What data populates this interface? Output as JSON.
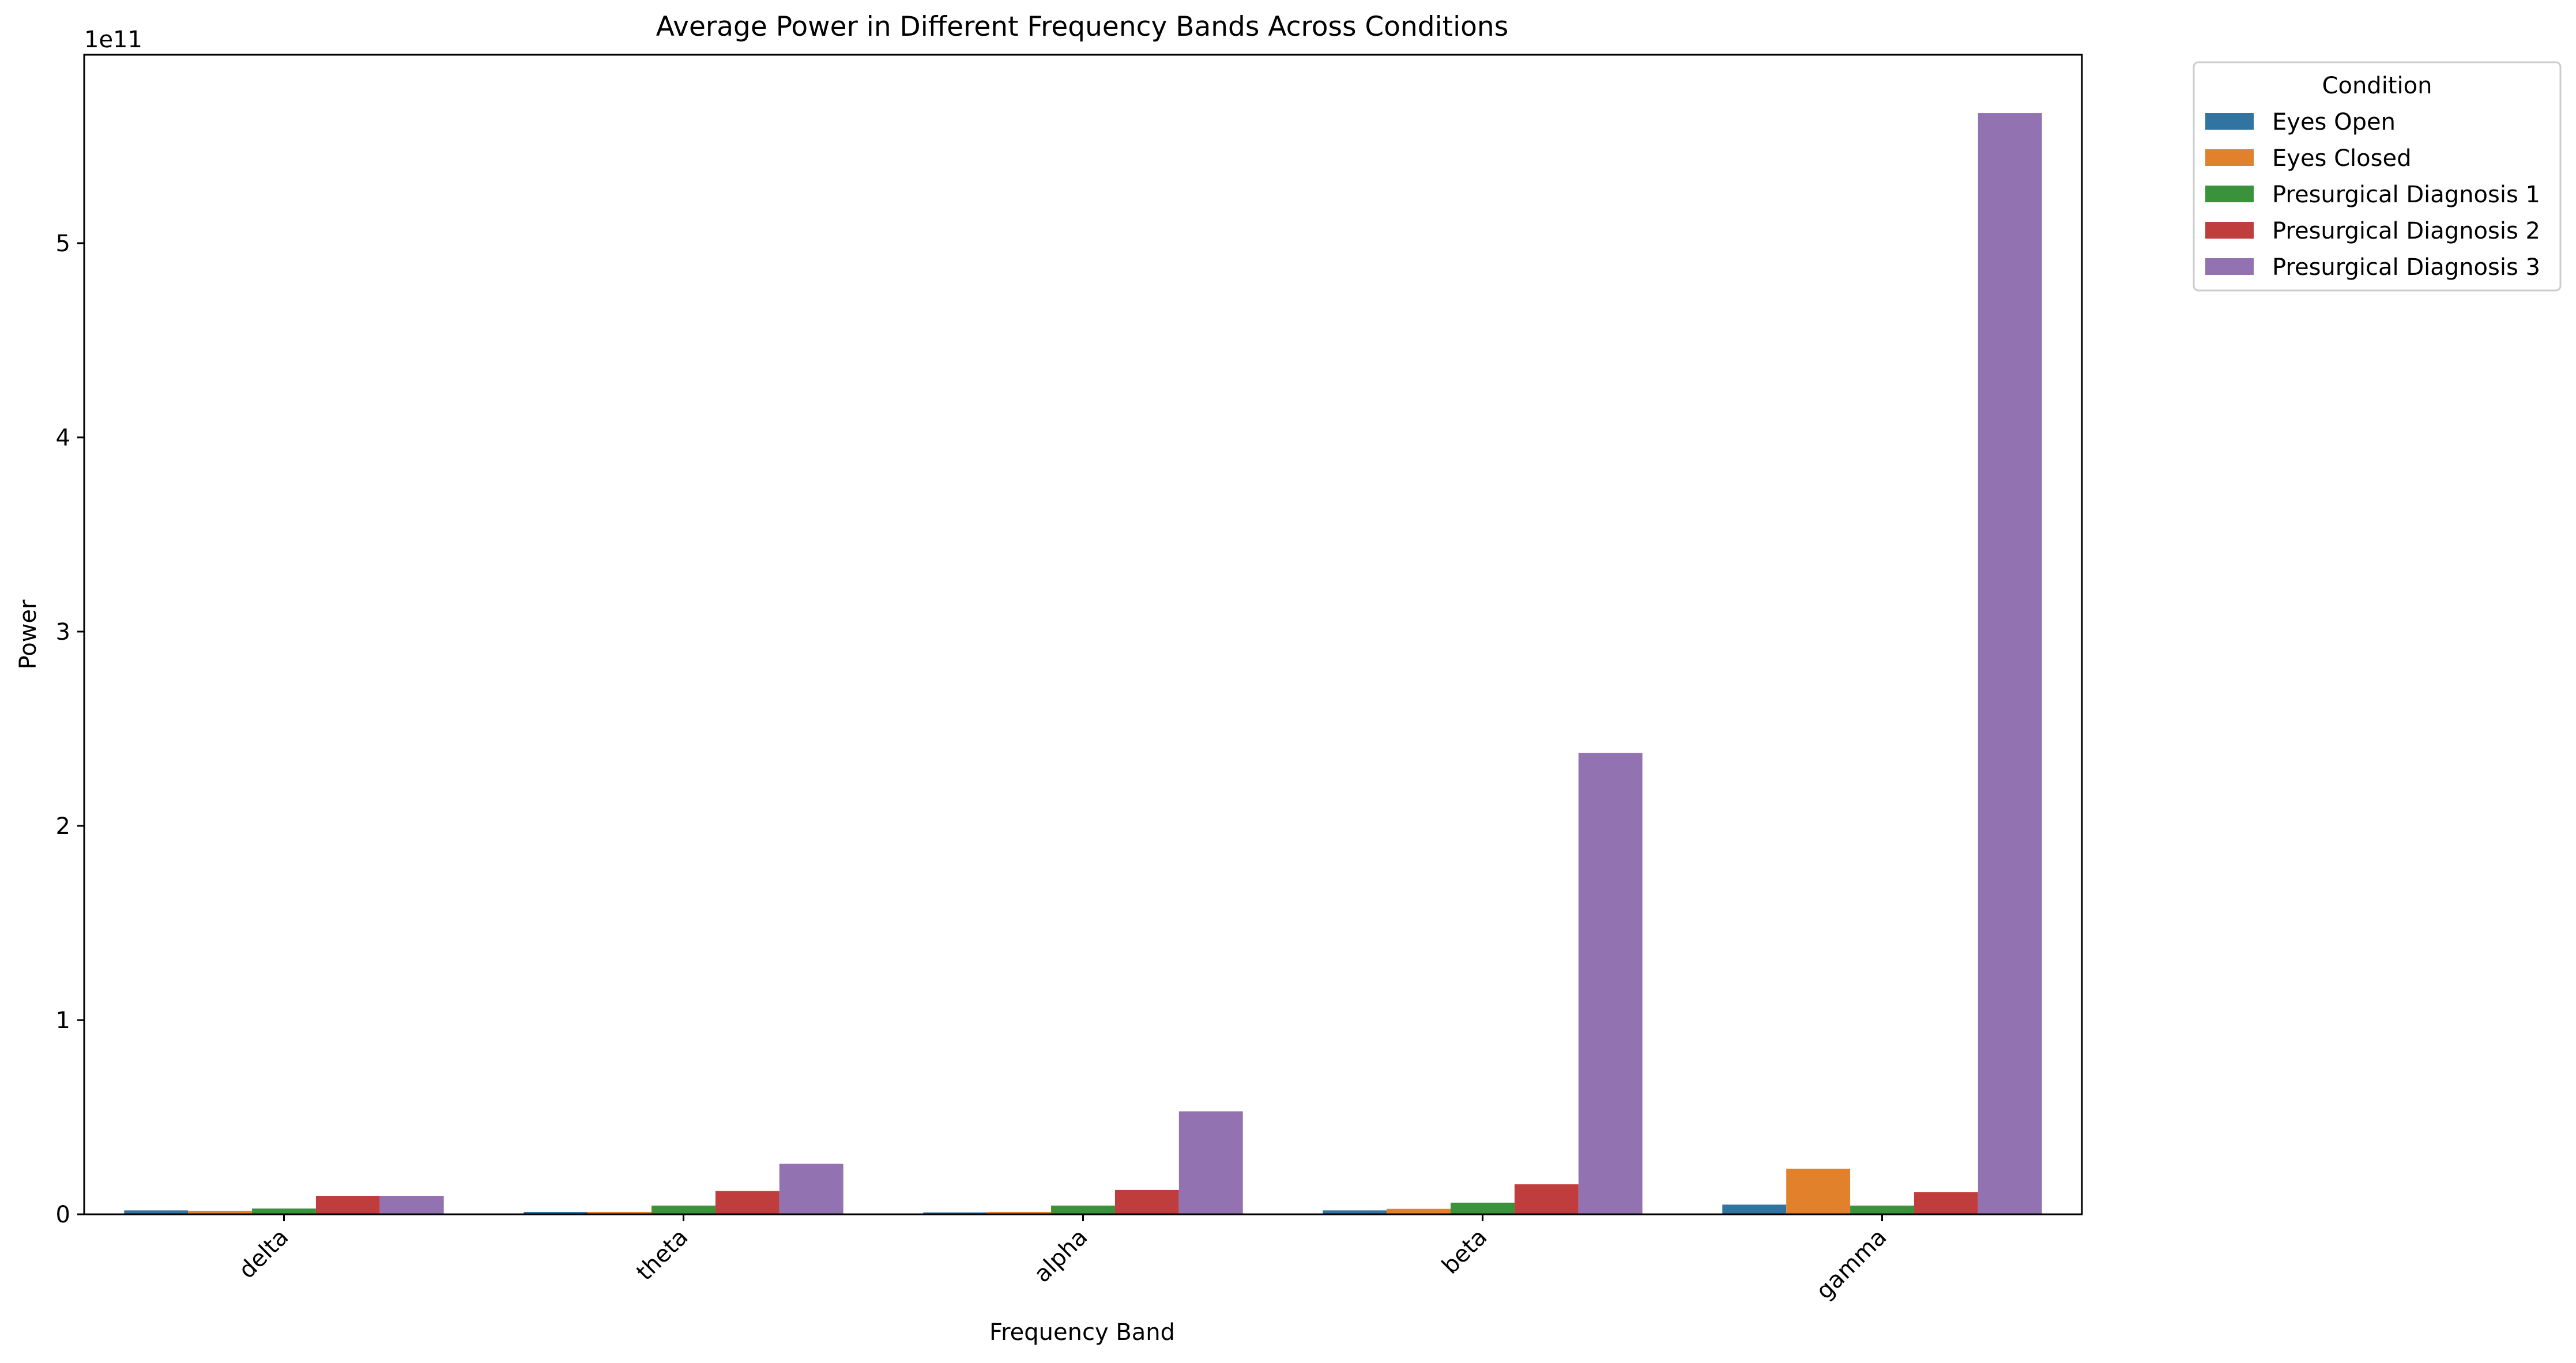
{
  "chart_data": {
    "type": "bar",
    "title": "Average Power in Different Frequency Bands Across Conditions",
    "xlabel": "Frequency Band",
    "ylabel": "Power",
    "offset_text": "1e11",
    "ylim": [
      0,
      5.97
    ],
    "yticks": [
      0,
      1,
      2,
      3,
      4,
      5
    ],
    "grid": false,
    "legend": {
      "title": "Condition",
      "placement": "outside-top-right"
    },
    "categories": [
      "delta",
      "theta",
      "alpha",
      "beta",
      "gamma"
    ],
    "series": [
      {
        "name": "Eyes Open",
        "color": "#3274a1",
        "values": [
          0.02,
          0.012,
          0.01,
          0.02,
          0.05
        ]
      },
      {
        "name": "Eyes Closed",
        "color": "#e1812c",
        "values": [
          0.018,
          0.012,
          0.012,
          0.028,
          0.235
        ]
      },
      {
        "name": "Presurgical Diagnosis 1",
        "color": "#3a923a",
        "values": [
          0.03,
          0.045,
          0.045,
          0.06,
          0.045
        ]
      },
      {
        "name": "Presurgical Diagnosis 2",
        "color": "#c03d3e",
        "values": [
          0.095,
          0.12,
          0.125,
          0.155,
          0.115
        ]
      },
      {
        "name": "Presurgical Diagnosis 3",
        "color": "#9372b2",
        "values": [
          0.095,
          0.26,
          0.53,
          2.375,
          5.67
        ]
      }
    ]
  }
}
